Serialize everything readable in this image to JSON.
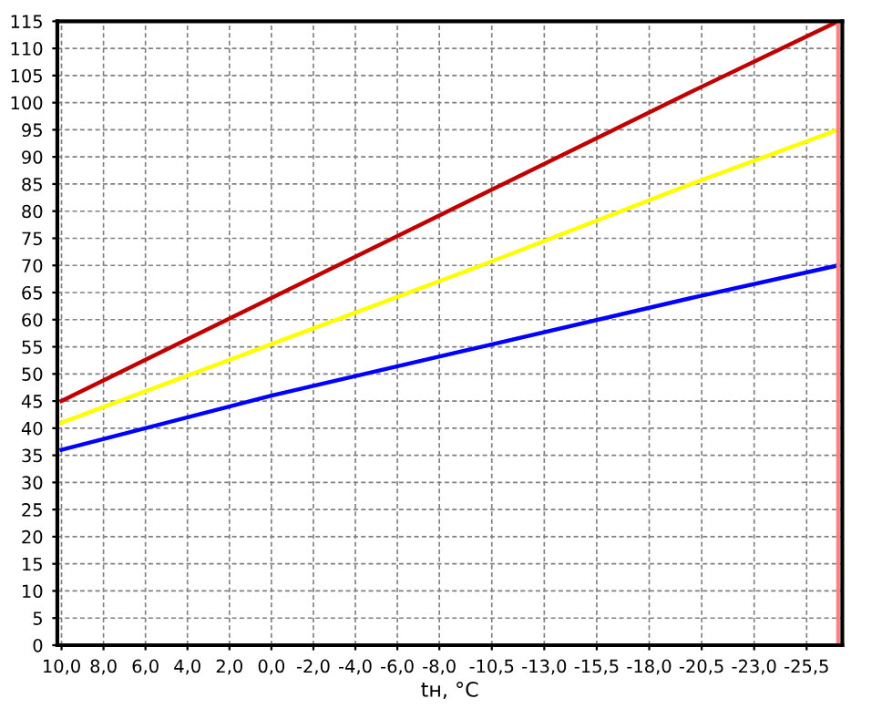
{
  "chart_data": {
    "type": "line",
    "xlabel": "tн, °C",
    "x": [
      10,
      0,
      -10,
      -20,
      -27
    ],
    "series": [
      {
        "color": "#c00000",
        "values": [
          45,
          64,
          83,
          102,
          115
        ]
      },
      {
        "color": "#ffff00",
        "values": [
          41,
          55.5,
          70,
          85,
          95
        ]
      },
      {
        "color": "#0000ff",
        "values": [
          36,
          46,
          55,
          64,
          70
        ]
      }
    ],
    "xlim": [
      10.2,
      -27.2
    ],
    "xticks": [
      {
        "value": 10,
        "label": "10,0"
      },
      {
        "value": 8,
        "label": "8,0"
      },
      {
        "value": 6,
        "label": "6,0"
      },
      {
        "value": 4,
        "label": "4,0"
      },
      {
        "value": 2,
        "label": "2,0"
      },
      {
        "value": 0,
        "label": "0,0"
      },
      {
        "value": -2,
        "label": "-2,0"
      },
      {
        "value": -4,
        "label": "-4,0"
      },
      {
        "value": -6,
        "label": "-6,0"
      },
      {
        "value": -8,
        "label": "-8,0"
      },
      {
        "value": -10.5,
        "label": "-10,5"
      },
      {
        "value": -13,
        "label": "-13,0"
      },
      {
        "value": -15.5,
        "label": "-15,5"
      },
      {
        "value": -18,
        "label": "-18,0"
      },
      {
        "value": -20.5,
        "label": "-20,5"
      },
      {
        "value": -23,
        "label": "-23,0"
      },
      {
        "value": -25.5,
        "label": "-25,5"
      }
    ],
    "ylim": [
      0,
      115
    ],
    "yticks": [
      0,
      5,
      10,
      15,
      20,
      25,
      30,
      35,
      40,
      45,
      50,
      55,
      60,
      65,
      70,
      75,
      80,
      85,
      90,
      95,
      100,
      105,
      110,
      115
    ],
    "ref_lines": [
      {
        "axis": "x",
        "value": -27,
        "color": "#ff8080"
      }
    ],
    "grid": true,
    "marker": "none",
    "line_style": "solid"
  }
}
